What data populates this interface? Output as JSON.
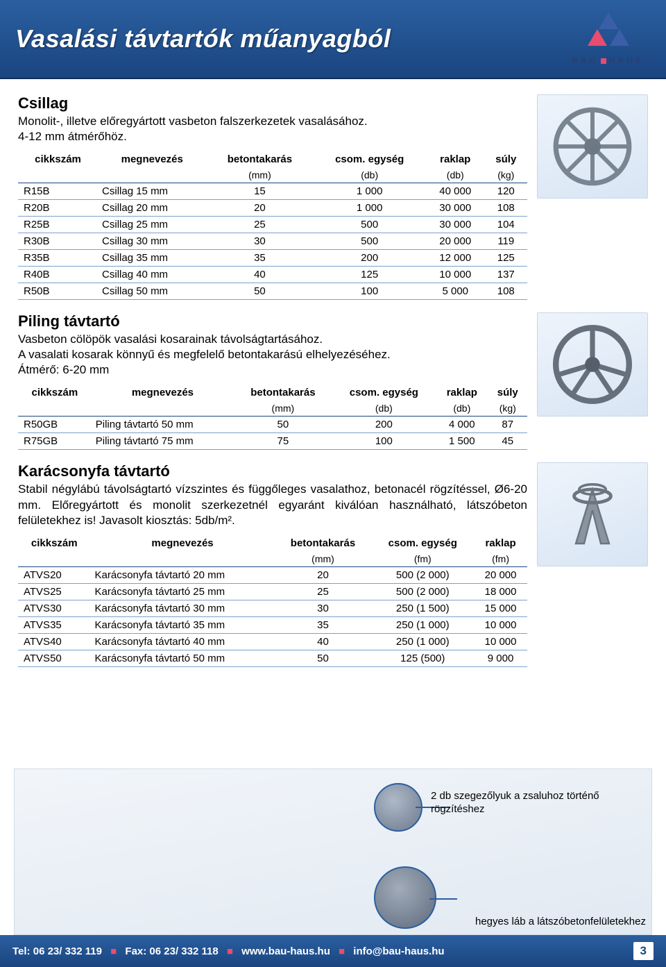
{
  "header": {
    "title": "Vasalási távtartók műanyagból",
    "logo_text_left": "BAU",
    "logo_text_right": "HAUS"
  },
  "colors": {
    "header_bg_top": "#2b5fa0",
    "header_bg_bottom": "#1a4580",
    "row_border": "#7aa0cc",
    "header_border": "#1a4580",
    "accent": "#e84c6f"
  },
  "section1": {
    "title": "Csillag",
    "desc1": "Monolit-, illetve előregyártott vasbeton falszerkezetek vasalásához.",
    "desc2": "4-12 mm átmérőhöz.",
    "table": {
      "columns": [
        "cikkszám",
        "megnevezés",
        "betontakarás",
        "csom. egység",
        "raklap",
        "súly"
      ],
      "subcolumns": [
        "",
        "",
        "(mm)",
        "(db)",
        "(db)",
        "(kg)"
      ],
      "col_align": [
        "left",
        "left",
        "center",
        "center",
        "center",
        "center"
      ],
      "rows": [
        [
          "R15B",
          "Csillag 15 mm",
          "15",
          "1 000",
          "40 000",
          "120"
        ],
        [
          "R20B",
          "Csillag 20 mm",
          "20",
          "1 000",
          "30 000",
          "108"
        ],
        [
          "R25B",
          "Csillag 25 mm",
          "25",
          "500",
          "30 000",
          "104"
        ],
        [
          "R30B",
          "Csillag 30 mm",
          "30",
          "500",
          "20 000",
          "119"
        ],
        [
          "R35B",
          "Csillag 35 mm",
          "35",
          "200",
          "12 000",
          "125"
        ],
        [
          "R40B",
          "Csillag 40 mm",
          "40",
          "125",
          "10 000",
          "137"
        ],
        [
          "R50B",
          "Csillag 50 mm",
          "50",
          "100",
          "5 000",
          "108"
        ]
      ]
    }
  },
  "section2": {
    "title": "Piling távtartó",
    "desc1": "Vasbeton cölöpök vasalási  kosarainak távolságtartásához.",
    "desc2": "A vasalati kosarak  könnyű és megfelelő betontakarású elhelyezéséhez.",
    "desc3": "Átmérő: 6-20 mm",
    "table": {
      "columns": [
        "cikkszám",
        "megnevezés",
        "betontakarás",
        "csom. egység",
        "raklap",
        "súly"
      ],
      "subcolumns": [
        "",
        "",
        "(mm)",
        "(db)",
        "(db)",
        "(kg)"
      ],
      "rows": [
        [
          "R50GB",
          "Piling távtartó 50 mm",
          "50",
          "200",
          "4 000",
          "87"
        ],
        [
          "R75GB",
          "Piling távtartó 75 mm",
          "75",
          "100",
          "1 500",
          "45"
        ]
      ]
    }
  },
  "section3": {
    "title": "Karácsonyfa  távtartó",
    "desc": "Stabil négylábú távolságtartó vízszintes és függőleges vasalathoz, betonacél rögzítéssel, Ø6-20 mm. Előregyártott és monolit szerkezetnél egyaránt  kiválóan használható, látszóbeton felületekhez is!  Javasolt kiosztás: 5db/m².",
    "table": {
      "columns": [
        "cikkszám",
        "megnevezés",
        "betontakarás",
        "csom. egység",
        "raklap"
      ],
      "subcolumns": [
        "",
        "",
        "(mm)",
        "(fm)",
        "(fm)"
      ],
      "rows": [
        [
          "ATVS20",
          "Karácsonyfa távtartó 20 mm",
          "20",
          "500 (2 000)",
          "20 000"
        ],
        [
          "ATVS25",
          "Karácsonyfa távtartó 25 mm",
          "25",
          "500 (2 000)",
          "18 000"
        ],
        [
          "ATVS30",
          "Karácsonyfa távtartó 30 mm",
          "30",
          "250 (1 500)",
          "15 000"
        ],
        [
          "ATVS35",
          "Karácsonyfa távtartó 35 mm",
          "35",
          "250 (1 000)",
          "10 000"
        ],
        [
          "ATVS40",
          "Karácsonyfa távtartó 40 mm",
          "40",
          "250 (1 000)",
          "10 000"
        ],
        [
          "ATVS50",
          "Karácsonyfa távtartó 50 mm",
          "50",
          "125 (500)",
          "9 000"
        ]
      ]
    }
  },
  "callouts": {
    "c1": "2 db szegezőlyuk a zsaluhoz történő rögzítéshez",
    "c2": "hegyes láb a látszóbetonfelületekhez"
  },
  "footer": {
    "tel_label": "Tel: 06 23/ 332 119",
    "fax_label": "Fax: 06 23/ 332 118",
    "web": "www.bau-haus.hu",
    "email": "info@bau-haus.hu",
    "page_number": "3"
  }
}
